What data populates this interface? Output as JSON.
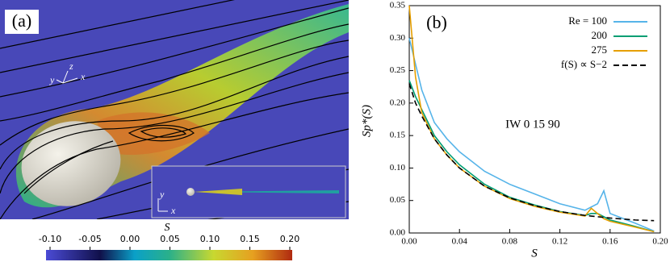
{
  "panel_a": {
    "label": "(a)",
    "axes_labels": {
      "main": [
        "y",
        "z",
        "x"
      ],
      "inset": [
        "y",
        "x"
      ]
    },
    "colorbar": {
      "label": "S",
      "range": [
        -0.1,
        0.2
      ],
      "ticks": [
        {
          "value": -0.1,
          "label": "-0.10"
        },
        {
          "value": -0.05,
          "label": "-0.05"
        },
        {
          "value": 0,
          "label": "0.00"
        },
        {
          "value": 0.05,
          "label": "0.05"
        },
        {
          "value": 0.1,
          "label": "0.10"
        },
        {
          "value": 0.15,
          "label": "0.15"
        },
        {
          "value": 0.2,
          "label": "0.20"
        }
      ]
    }
  },
  "chart_data": {
    "type": "line",
    "panel_label": "(b)",
    "annotation": "IW 0 15 90",
    "x_label": "S",
    "y_label": "Sp*(S)",
    "x": [
      0,
      0.005,
      0.01,
      0.02,
      0.03,
      0.04,
      0.06,
      0.08,
      0.1,
      0.12,
      0.14,
      0.145,
      0.15,
      0.155,
      0.16,
      0.18,
      0.195
    ],
    "series": [
      {
        "name": "Re = 100",
        "color": "#56b4e9",
        "linestyle": "solid",
        "values": [
          0.3,
          0.26,
          0.22,
          0.17,
          0.145,
          0.125,
          0.095,
          0.075,
          0.06,
          0.045,
          0.035,
          0.04,
          0.045,
          0.065,
          0.03,
          0.015,
          0.003
        ]
      },
      {
        "name": "200",
        "color": "#009e73",
        "linestyle": "solid",
        "values": [
          0.235,
          0.21,
          0.19,
          0.15,
          0.125,
          0.105,
          0.075,
          0.055,
          0.043,
          0.033,
          0.027,
          0.03,
          0.03,
          0.025,
          0.02,
          0.01,
          0.002
        ]
      },
      {
        "name": "275",
        "color": "#e69f00",
        "linestyle": "solid",
        "values": [
          0.35,
          0.24,
          0.185,
          0.145,
          0.12,
          0.1,
          0.072,
          0.053,
          0.041,
          0.032,
          0.026,
          0.038,
          0.03,
          0.022,
          0.018,
          0.009,
          0.002
        ]
      },
      {
        "name": "f(S) ∝ S−2",
        "color": "#000000",
        "linestyle": "dashed",
        "values": [
          0.23,
          0.2,
          0.18,
          0.145,
          0.12,
          0.1,
          0.072,
          0.054,
          0.042,
          0.033,
          0.027,
          0.026,
          0.025,
          0.024,
          0.023,
          0.02,
          0.019
        ]
      }
    ],
    "xlim": [
      0,
      0.2
    ],
    "xticks": [
      {
        "value": 0,
        "label": "0.00"
      },
      {
        "value": 0.04,
        "label": "0.04"
      },
      {
        "value": 0.08,
        "label": "0.08"
      },
      {
        "value": 0.12,
        "label": "0.12"
      },
      {
        "value": 0.16,
        "label": "0.16"
      },
      {
        "value": 0.2,
        "label": "0.20"
      }
    ],
    "ylim": [
      0,
      0.35
    ],
    "yticks": [
      {
        "value": 0,
        "label": "0.00"
      },
      {
        "value": 0.05,
        "label": "0.05"
      },
      {
        "value": 0.1,
        "label": "0.10"
      },
      {
        "value": 0.15,
        "label": "0.15"
      },
      {
        "value": 0.2,
        "label": "0.20"
      },
      {
        "value": 0.25,
        "label": "0.25"
      },
      {
        "value": 0.3,
        "label": "0.30"
      },
      {
        "value": 0.35,
        "label": "0.35"
      }
    ]
  }
}
